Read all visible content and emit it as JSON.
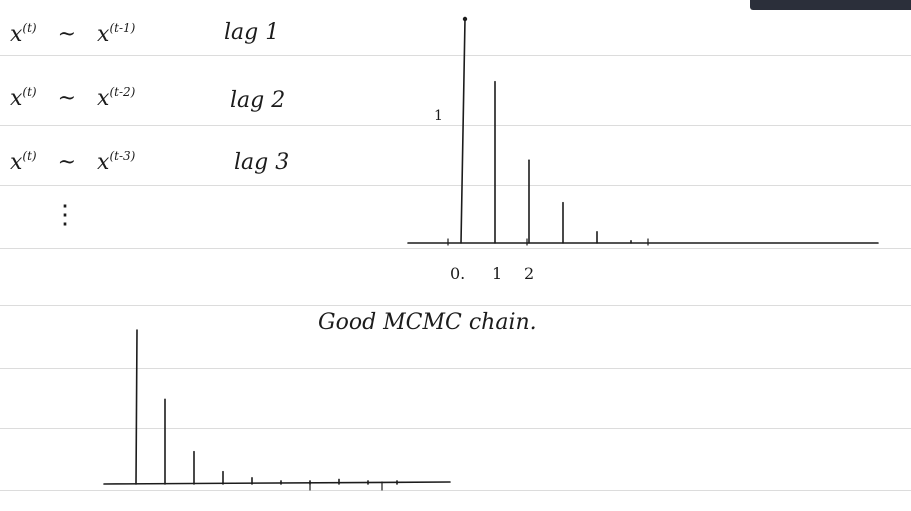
{
  "notes": {
    "lines": [
      {
        "var": "x",
        "sup1": "(t)",
        "sim": "~",
        "var2": "x",
        "sup2": "(t-1)",
        "lag": "lag 1"
      },
      {
        "var": "x",
        "sup1": "(t)",
        "sim": "~",
        "var2": "x",
        "sup2": "(t-2)",
        "lag": "lag 2"
      },
      {
        "var": "x",
        "sup1": "(t)",
        "sim": "~",
        "var2": "x",
        "sup2": "(t-3)",
        "lag": "lag 3"
      }
    ],
    "ellipsis": "⋮"
  },
  "top_plot": {
    "y_tick": "1",
    "x_ticks": [
      "0.",
      "1",
      "2"
    ],
    "stems": [
      1.0,
      0.72,
      0.37,
      0.18,
      0.05,
      0.01
    ]
  },
  "caption": "Good MCMC chain.",
  "bottom_plot": {
    "stems": [
      1.0,
      0.55,
      0.21,
      0.08,
      0.04,
      0.02,
      0.02,
      0.03,
      0.02,
      0.02
    ]
  },
  "colors": {
    "ink": "#1c1c1c",
    "ruled": "#dcdcdc",
    "toolbar": "#2b2f3a"
  }
}
